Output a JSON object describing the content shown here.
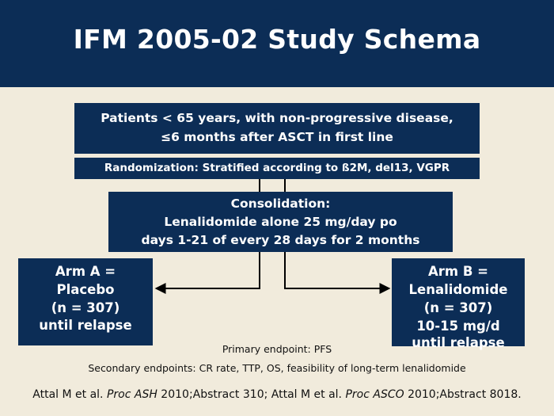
{
  "title": "IFM 2005-02 Study Schema",
  "patients": {
    "line1": "Patients < 65 years, with non-progressive disease,",
    "line2": "≤6 months after ASCT in first line"
  },
  "randomization": "Randomization: Stratified according to ß2M, del13, VGPR",
  "consolidation": {
    "line1": "Consolidation:",
    "line2": "Lenalidomide alone 25 mg/day po",
    "line3": "days 1-21 of every 28 days for 2 months"
  },
  "arm_a": {
    "line1": "Arm A =",
    "line2": "Placebo",
    "line3": "(n = 307)",
    "line4": "until relapse"
  },
  "arm_b": {
    "line1": "Arm B =",
    "line2": "Lenalidomide",
    "line3": "(n = 307)",
    "line4": "10-15 mg/d",
    "line5": "until relapse"
  },
  "endpoints": {
    "primary": "Primary endpoint: PFS",
    "secondary": "Secondary endpoints: CR rate, TTP, OS, feasibility of long-term lenalidomide"
  },
  "citation": {
    "part1": "Attal M et al. ",
    "journal1": "Proc ASH",
    "part2": " 2010;Abstract 310; Attal M et al. ",
    "journal2": "Proc ASCO",
    "part3": " 2010;Abstract 8018."
  },
  "colors": {
    "navy": "#0c2d56",
    "background": "#f1ebdc",
    "text_light": "#ffffff",
    "text_dark": "#111111"
  }
}
